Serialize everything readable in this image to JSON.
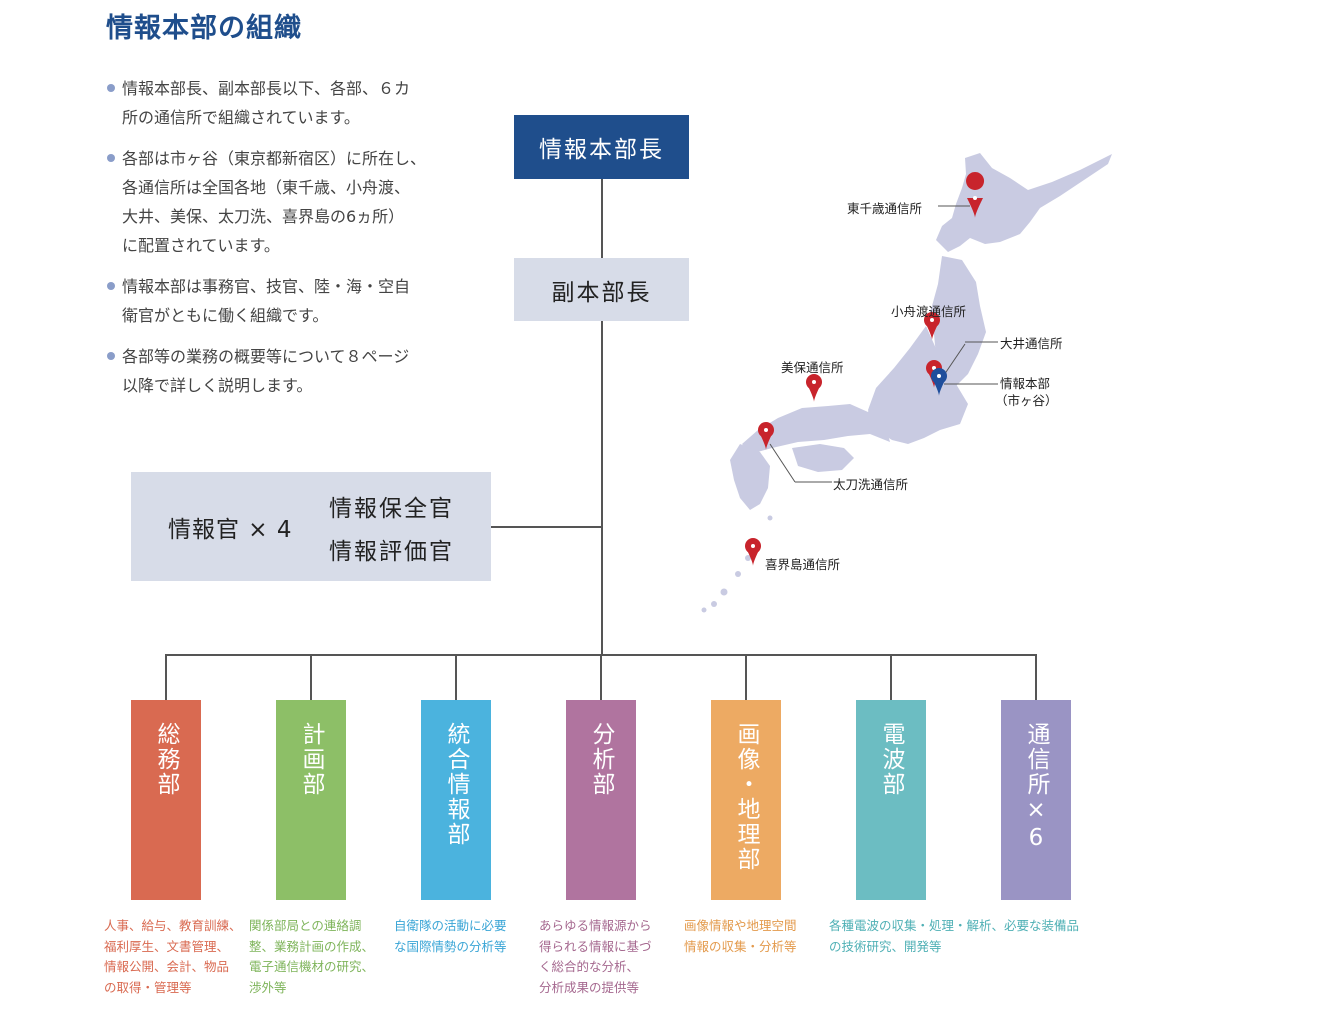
{
  "title": "情報本部の組織",
  "bullets": [
    [
      "情報本部長、副本部長以下、各部、６カ",
      "所の通信所で組織されています。"
    ],
    [
      "各部は市ヶ谷（東京都新宿区）に所在し、",
      "各通信所は全国各地（東千歳、小舟渡、",
      "大井、美保、太刀洗、喜界島の6ヵ所）",
      "に配置されています。"
    ],
    [
      "情報本部は事務官、技官、陸・海・空自",
      "衛官がともに働く組織です。"
    ],
    [
      "各部等の業務の概要等について８ページ",
      "以降で詳しく説明します。"
    ]
  ],
  "chief": "情報本部長",
  "deputy": "副本部長",
  "staff": {
    "main": "情報官 × 4",
    "right1": "情報保全官",
    "right2": "情報評価官"
  },
  "departments": [
    {
      "name": "総務部",
      "color": "#d96a51",
      "desc_color": "#d96a51",
      "desc": [
        "人事、給与、教育訓練、",
        "福利厚生、文書管理、",
        "情報公開、会計、物品",
        "の取得・管理等"
      ]
    },
    {
      "name": "計画部",
      "color": "#8dbf67",
      "desc_color": "#7eb45a",
      "desc": [
        "関係部局との連絡調",
        "整、業務計画の作成、",
        "電子通信機材の研究、",
        "渉外等"
      ]
    },
    {
      "name": "統合情報部",
      "color": "#4bb3de",
      "desc_color": "#3aa5d6",
      "desc": [
        "自衛隊の活動に必要",
        "な国際情勢の分析等"
      ]
    },
    {
      "name": "分析部",
      "color": "#b0749f",
      "desc_color": "#a5688f",
      "desc": [
        "あらゆる情報源から",
        "得られる情報に基づ",
        "く総合的な分析、",
        "分析成果の提供等"
      ]
    },
    {
      "name": "画像・地理部",
      "color": "#edaa63",
      "desc_color": "#e39a4c",
      "desc": [
        "画像情報や地理空間",
        "情報の収集・分析等"
      ]
    },
    {
      "name": "電波部",
      "color": "#6cbdc2",
      "desc_color": "#4fb0b5",
      "desc": [
        "各種電波の収集・処理・解析、必要な装備品",
        "の技術研究、開発等"
      ]
    },
    {
      "name": "通信所×6",
      "color": "#9a94c4",
      "desc_color": "#8a84b8",
      "desc": []
    }
  ],
  "map_labels": {
    "higashichitose": "東千歳通信所",
    "kofunato": "小舟渡通信所",
    "oi": "大井通信所",
    "hq": "情報本部",
    "hq_sub": "（市ヶ谷）",
    "miho": "美保通信所",
    "tachiarai": "太刀洗通信所",
    "kikaijima": "喜界島通信所"
  },
  "colors": {
    "title": "#1f4e8c",
    "chief_bg": "#1f4e8c",
    "deputy_bg": "#d7dce8",
    "map_land": "#c9cbe2",
    "pin_red": "#c8242c",
    "pin_blue": "#1f4e9c"
  }
}
